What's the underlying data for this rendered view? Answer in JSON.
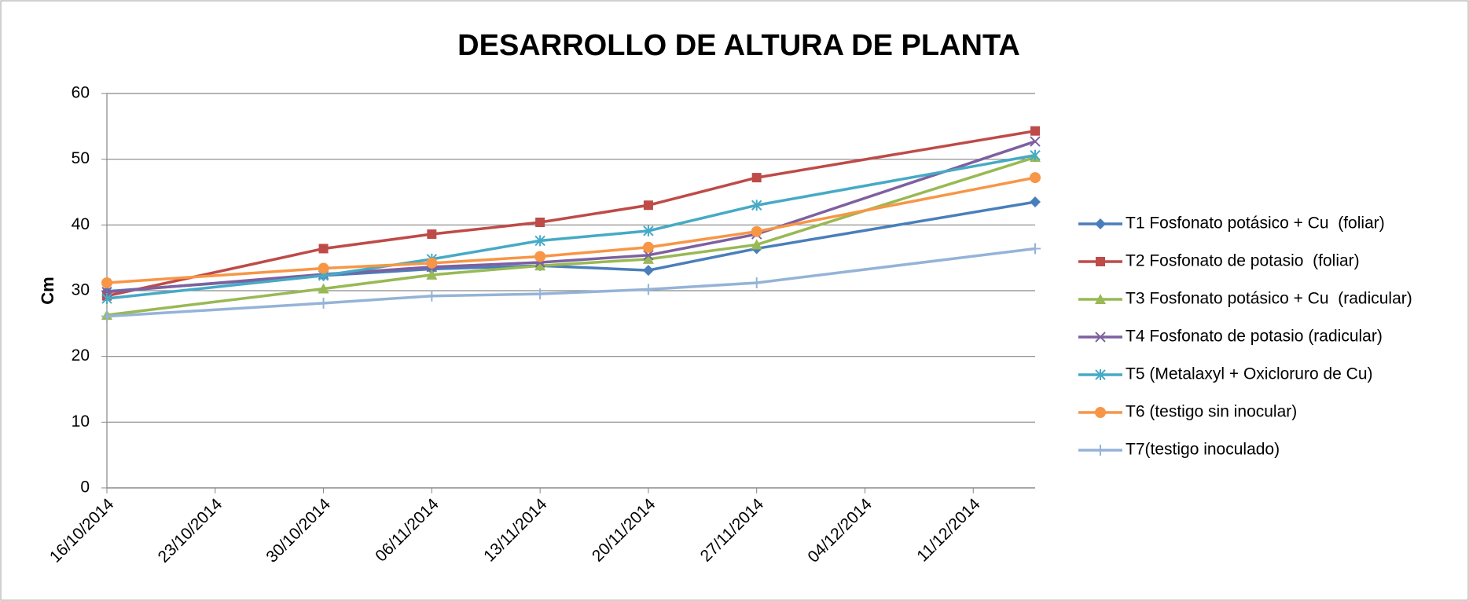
{
  "chart_data": {
    "type": "line",
    "title": "DESARROLLO DE ALTURA DE PLANTA",
    "y_label": "Cm",
    "x": [
      "16/10/2014",
      "30/10/2014",
      "06/11/2014",
      "13/11/2014",
      "20/11/2014",
      "27/11/2014",
      "15/12/2014"
    ],
    "xlim": [
      "16/10/2014",
      "15/12/2014"
    ],
    "xticks": [
      "16/10/2014",
      "23/10/2014",
      "30/10/2014",
      "06/11/2014",
      "13/11/2014",
      "20/11/2014",
      "27/11/2014",
      "04/12/2014",
      "11/12/2014"
    ],
    "ylim": [
      0,
      60
    ],
    "yticks": [
      0,
      10,
      20,
      30,
      40,
      50,
      60
    ],
    "grid": true,
    "legend": "right",
    "series": [
      {
        "name": "T1 Fosfonato potásico + Cu  (foliar)",
        "color": "#4a7ebb",
        "marker": "diamond",
        "values": [
          29.9,
          32.3,
          33.3,
          33.8,
          33.1,
          36.4,
          43.5
        ]
      },
      {
        "name": "T2 Fosfonato de potasio  (foliar)",
        "color": "#be4b48",
        "marker": "square",
        "values": [
          29.2,
          36.4,
          38.6,
          40.4,
          43.0,
          47.2,
          54.3
        ]
      },
      {
        "name": "T3 Fosfonato potásico + Cu  (radicular)",
        "color": "#98b954",
        "marker": "triangle",
        "values": [
          26.3,
          30.3,
          32.4,
          33.8,
          34.8,
          37.0,
          50.3
        ]
      },
      {
        "name": "T4 Fosfonato de potasio (radicular)",
        "color": "#7d60a0",
        "marker": "x",
        "values": [
          29.8,
          32.5,
          33.6,
          34.3,
          35.4,
          38.6,
          52.7
        ]
      },
      {
        "name": "T5 (Metalaxyl + Oxicloruro de Cu)",
        "color": "#46aac5",
        "marker": "star",
        "values": [
          28.8,
          32.3,
          34.8,
          37.6,
          39.1,
          43.0,
          50.6
        ]
      },
      {
        "name": "T6 (testigo sin inocular)",
        "color": "#f79646",
        "marker": "circle",
        "values": [
          31.2,
          33.4,
          34.2,
          35.2,
          36.6,
          39.0,
          47.2
        ]
      },
      {
        "name": "T7(testigo inoculado)",
        "color": "#95b3d7",
        "marker": "plus",
        "values": [
          26.1,
          28.1,
          29.2,
          29.5,
          30.2,
          31.2,
          36.4
        ]
      }
    ]
  }
}
